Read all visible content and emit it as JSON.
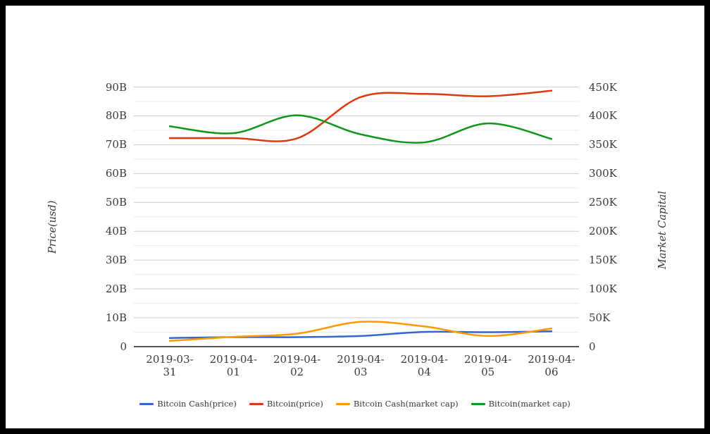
{
  "chart_data": {
    "type": "line",
    "smooth": true,
    "title": "",
    "x": [
      "2019-03-31",
      "2019-04-01",
      "2019-04-02",
      "2019-04-03",
      "2019-04-04",
      "2019-04-05",
      "2019-04-06"
    ],
    "series": [
      {
        "name": "Bitcoin Cash(price)",
        "color": "#3366cc",
        "axis": "left",
        "values": [
          3.0,
          3.3,
          3.3,
          3.7,
          5.1,
          5.0,
          5.3
        ]
      },
      {
        "name": "Bitcoin(price)",
        "color": "#dc3912",
        "axis": "left",
        "values": [
          72.3,
          72.3,
          72.2,
          86.5,
          87.6,
          86.8,
          88.7
        ]
      },
      {
        "name": "Bitcoin Cash(market cap)",
        "color": "#ff9900",
        "axis": "right",
        "values": [
          10,
          17,
          22.5,
          43,
          35,
          18.5,
          31.5
        ]
      },
      {
        "name": "Bitcoin(market cap)",
        "color": "#109618",
        "axis": "right",
        "values": [
          382,
          370,
          401,
          368,
          354,
          387,
          360
        ]
      }
    ],
    "left_axis": {
      "title": "Price(usd)",
      "range": [
        0,
        90
      ],
      "ticks": [
        {
          "label": "90B",
          "value": 90
        },
        {
          "label": "80B",
          "value": 80
        },
        {
          "label": "70B",
          "value": 70
        },
        {
          "label": "60B",
          "value": 60
        },
        {
          "label": "50B",
          "value": 50
        },
        {
          "label": "40B",
          "value": 40
        },
        {
          "label": "30B",
          "value": 30
        },
        {
          "label": "20B",
          "value": 20
        },
        {
          "label": "10B",
          "value": 10
        },
        {
          "label": "0",
          "value": 0
        }
      ]
    },
    "right_axis": {
      "title": "Market Capital",
      "range": [
        0,
        450
      ],
      "ticks": [
        {
          "label": "450K",
          "value": 450
        },
        {
          "label": "400K",
          "value": 400
        },
        {
          "label": "350K",
          "value": 350
        },
        {
          "label": "300K",
          "value": 300
        },
        {
          "label": "250K",
          "value": 250
        },
        {
          "label": "200K",
          "value": 200
        },
        {
          "label": "150K",
          "value": 150
        },
        {
          "label": "100K",
          "value": 100
        },
        {
          "label": "50K",
          "value": 50
        },
        {
          "label": "0",
          "value": 0
        }
      ]
    },
    "legend_position": "bottom",
    "grid": true
  },
  "colors": {
    "frame": "#000000",
    "background": "#ffffff",
    "grid_major": "#cccccc",
    "grid_minor": "#ebebeb",
    "axis_line": "#1a1a1a",
    "text": "#3a3a3a"
  }
}
